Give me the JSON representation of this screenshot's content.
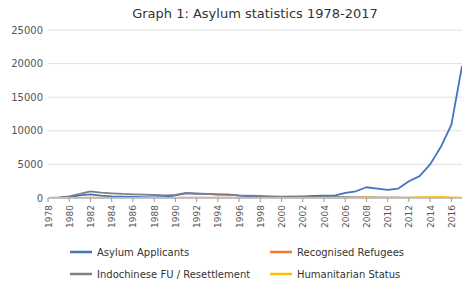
{
  "chart_data": {
    "type": "line",
    "title": "Graph 1: Asylum statistics 1978-2017",
    "x": [
      1978,
      1979,
      1980,
      1981,
      1982,
      1983,
      1984,
      1985,
      1986,
      1987,
      1988,
      1989,
      1990,
      1991,
      1992,
      1993,
      1994,
      1995,
      1996,
      1997,
      1998,
      1999,
      2000,
      2001,
      2002,
      2003,
      2004,
      2005,
      2006,
      2007,
      2008,
      2009,
      2010,
      2011,
      2012,
      2013,
      2014,
      2015,
      2016,
      2017
    ],
    "series": [
      {
        "name": "Asylum Applicants",
        "color": "#4472c4",
        "values": [
          0,
          30,
          120,
          400,
          530,
          350,
          250,
          200,
          160,
          140,
          100,
          150,
          400,
          700,
          600,
          600,
          500,
          500,
          350,
          250,
          150,
          150,
          150,
          200,
          250,
          300,
          350,
          350,
          750,
          1000,
          1600,
          1400,
          1200,
          1400,
          2500,
          3260,
          5000,
          7586,
          10901,
          19629
        ]
      },
      {
        "name": "Recognised Refugees",
        "color": "#ed7d31",
        "values": [
          0,
          0,
          0,
          0,
          60,
          40,
          20,
          20,
          20,
          20,
          20,
          20,
          20,
          50,
          70,
          70,
          50,
          50,
          30,
          20,
          20,
          20,
          20,
          20,
          20,
          10,
          15,
          45,
          40,
          40,
          55,
          30,
          40,
          60,
          20,
          6,
          11,
          27,
          28,
          20
        ]
      },
      {
        "name": "Indochinese FU / Resettlement",
        "color": "#7f7f7f",
        "values": [
          0,
          80,
          250,
          600,
          1000,
          800,
          700,
          600,
          550,
          500,
          450,
          400,
          450,
          750,
          700,
          600,
          550,
          500,
          400,
          350,
          300,
          250,
          200,
          200,
          150,
          150,
          130,
          120,
          110,
          100,
          90,
          80,
          70,
          60,
          50,
          40,
          35,
          30,
          25,
          20
        ]
      },
      {
        "name": "Humanitarian Status",
        "color": "#ffc000",
        "values": [
          0,
          0,
          0,
          0,
          0,
          0,
          0,
          0,
          0,
          0,
          0,
          0,
          0,
          0,
          0,
          0,
          0,
          0,
          0,
          0,
          0,
          0,
          0,
          0,
          0,
          0,
          0,
          0,
          0,
          0,
          100,
          20,
          20,
          30,
          40,
          100,
          110,
          150,
          97,
          45
        ]
      }
    ],
    "xlim": [
      1978,
      2017
    ],
    "xticks": [
      1978,
      1980,
      1982,
      1984,
      1986,
      1988,
      1990,
      1992,
      1994,
      1996,
      1998,
      2000,
      2002,
      2004,
      2006,
      2008,
      2010,
      2012,
      2014,
      2016
    ],
    "ylim": [
      0,
      25000
    ],
    "yticks": [
      0,
      5000,
      10000,
      15000,
      20000,
      25000
    ],
    "grid": true,
    "legend": "bottom"
  }
}
